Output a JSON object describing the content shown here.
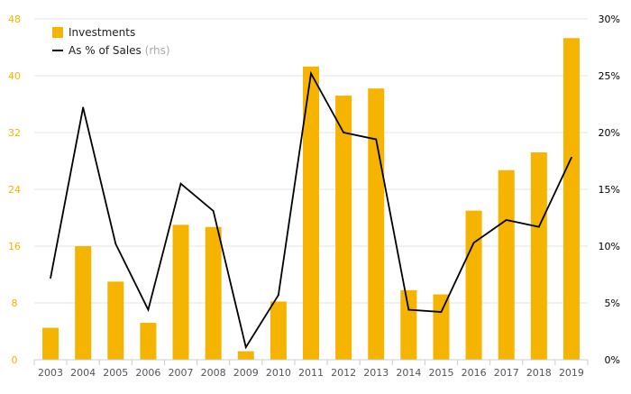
{
  "chart_data": {
    "type": "bar",
    "categories": [
      "2003",
      "2004",
      "2005",
      "2006",
      "2007",
      "2008",
      "2009",
      "2010",
      "2011",
      "2012",
      "2013",
      "2014",
      "2015",
      "2016",
      "2017",
      "2018",
      "2019"
    ],
    "series": [
      {
        "name": "Investments",
        "kind": "bar",
        "axis": "left",
        "color": "#f5b400",
        "values": [
          4.5,
          16,
          11,
          5.2,
          19,
          18.7,
          1.2,
          8.2,
          41.3,
          37.2,
          38.2,
          9.8,
          9.2,
          21,
          26.7,
          29.2,
          45.3
        ]
      },
      {
        "name": "As % of Sales",
        "name_suffix": "(rhs)",
        "kind": "line",
        "axis": "right",
        "color": "#000000",
        "values": [
          7.2,
          22.2,
          10.2,
          4.4,
          15.5,
          13.1,
          1.1,
          5.7,
          25.2,
          20,
          19.4,
          4.4,
          4.2,
          10.3,
          12.3,
          11.7,
          17.8
        ]
      }
    ],
    "y_left": {
      "min": 0,
      "max": 48,
      "ticks": [
        0,
        8,
        16,
        24,
        32,
        40,
        48
      ],
      "tick_color": "#f5b400"
    },
    "y_right": {
      "min": 0,
      "max": 30,
      "ticks": [
        0,
        5,
        10,
        15,
        20,
        25,
        30
      ],
      "tick_suffix": "%",
      "tick_color": "#000000"
    },
    "grid": true,
    "legend": "top-left"
  }
}
